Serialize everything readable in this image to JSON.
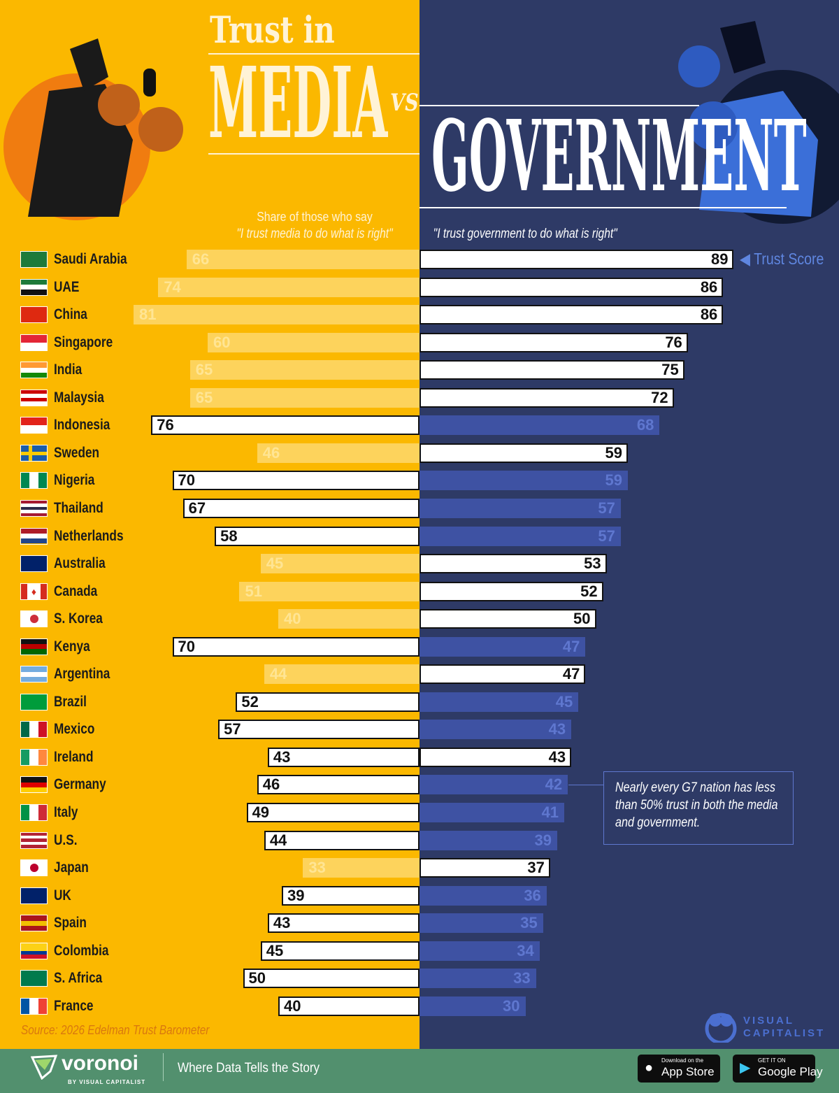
{
  "title": {
    "line1": "Trust in",
    "media": "MEDIA",
    "vs": "VS",
    "government": "GOVERNMENT"
  },
  "subtitle_left": {
    "line1": "Share of those who say",
    "line2": "\"I trust media to do what is right\""
  },
  "subtitle_right": "\"I trust government to do what is right\"",
  "legend_label": "Trust Score",
  "annotation": "Nearly every G7 nation has less than 50% trust in both the media and government.",
  "source": "Source: 2026 Edelman Trust Barometer",
  "brand": {
    "vc": "VISUAL CAPITALIST",
    "voronoi": "voronoi",
    "voronoi_sub": "BY VISUAL CAPITALIST",
    "tagline": "Where Data Tells the Story",
    "appstore_small": "Download on the",
    "appstore": "App Store",
    "gplay_small": "GET IT ON",
    "gplay": "Google Play"
  },
  "colors": {
    "media_bg": "#FBB800",
    "media_bar": "#FDD35C",
    "gov_bg": "#2E3A66",
    "gov_bar": "#3E52A3",
    "highlight": "#FFFFFF",
    "footer": "#52906E"
  },
  "chart_data": {
    "type": "bar",
    "orientation": "horizontal diverging",
    "series": [
      {
        "name": "media",
        "label": "\"I trust media to do what is right\""
      },
      {
        "name": "government",
        "label": "\"I trust government to do what is right\""
      }
    ],
    "categories": [
      "Saudi Arabia",
      "UAE",
      "China",
      "Singapore",
      "India",
      "Malaysia",
      "Indonesia",
      "Sweden",
      "Nigeria",
      "Thailand",
      "Netherlands",
      "Australia",
      "Canada",
      "S. Korea",
      "Kenya",
      "Argentina",
      "Brazil",
      "Mexico",
      "Ireland",
      "Germany",
      "Italy",
      "U.S.",
      "Japan",
      "UK",
      "Spain",
      "Colombia",
      "S. Africa",
      "France"
    ],
    "media": [
      66,
      74,
      81,
      60,
      65,
      65,
      76,
      46,
      70,
      67,
      58,
      45,
      51,
      40,
      70,
      44,
      52,
      57,
      43,
      46,
      49,
      44,
      33,
      39,
      43,
      45,
      50,
      40
    ],
    "government": [
      89,
      86,
      86,
      76,
      75,
      72,
      68,
      59,
      59,
      57,
      57,
      53,
      52,
      50,
      47,
      47,
      45,
      43,
      43,
      42,
      41,
      39,
      37,
      36,
      35,
      34,
      33,
      30
    ],
    "xlim": [
      0,
      100
    ],
    "note": "higher of the two scores is highlighted in white"
  }
}
